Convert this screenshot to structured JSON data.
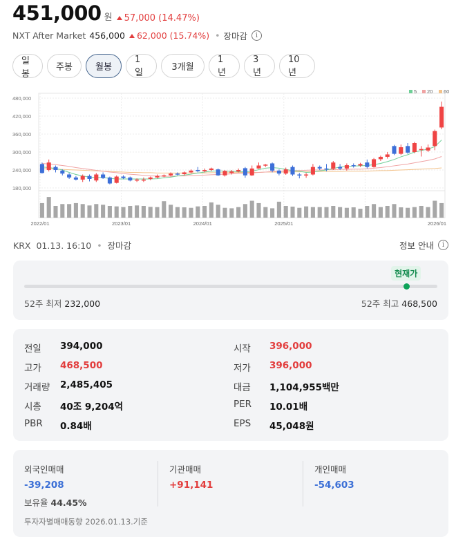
{
  "price": {
    "current": "451,000",
    "unit": "원",
    "change": "57,000 (14.47%)"
  },
  "nxt": {
    "label": "NXT After Market",
    "price": "456,000",
    "change": "62,000 (15.74%)",
    "status": "장마감"
  },
  "tabs": [
    "일봉",
    "주봉",
    "월봉",
    "1일",
    "3개월",
    "1년",
    "3년",
    "10년"
  ],
  "active_tab": "월봉",
  "chart_data": {
    "type": "candlestick",
    "yticks": [
      "480,000",
      "420,000",
      "360,000",
      "300,000",
      "240,000",
      "180,000"
    ],
    "ylim": [
      180000,
      480000
    ],
    "xticks": [
      "2022/01",
      "2023/01",
      "2024/01",
      "2025/01",
      "2026/01"
    ],
    "legend": [
      "5",
      "20",
      "60"
    ],
    "colors": {
      "up": "#ef4444",
      "down": "#3d6fd8",
      "ma5": "#6fcf97",
      "ma20": "#f0a3a3",
      "ma60": "#f3c28a",
      "volume": "#a7a7a7"
    },
    "candles": [
      [
        260000,
        230000,
        265000,
        228000
      ],
      [
        240000,
        265000,
        275000,
        235000
      ],
      [
        250000,
        240000,
        255000,
        232000
      ],
      [
        238000,
        228000,
        242000,
        222000
      ],
      [
        225000,
        215000,
        230000,
        210000
      ],
      [
        215000,
        208000,
        220000,
        205000
      ],
      [
        208000,
        220000,
        225000,
        200000
      ],
      [
        220000,
        210000,
        225000,
        202000
      ],
      [
        205000,
        225000,
        230000,
        200000
      ],
      [
        225000,
        213000,
        232000,
        210000
      ],
      [
        215000,
        195000,
        218000,
        192000
      ],
      [
        197000,
        218000,
        222000,
        195000
      ],
      [
        218000,
        213000,
        222000,
        209000
      ],
      [
        215000,
        205000,
        218000,
        202000
      ],
      [
        205000,
        208000,
        212000,
        200000
      ],
      [
        205000,
        208000,
        215000,
        200000
      ],
      [
        210000,
        215000,
        218000,
        206000
      ],
      [
        215000,
        220000,
        225000,
        212000
      ],
      [
        220000,
        222000,
        225000,
        216000
      ],
      [
        222000,
        228000,
        232000,
        218000
      ],
      [
        228000,
        226000,
        232000,
        222000
      ],
      [
        226000,
        232000,
        235000,
        222000
      ],
      [
        232000,
        238000,
        242000,
        228000
      ],
      [
        240000,
        236000,
        250000,
        232000
      ],
      [
        236000,
        240000,
        245000,
        232000
      ],
      [
        240000,
        245000,
        248000,
        236000
      ],
      [
        242000,
        222000,
        245000,
        220000
      ],
      [
        222000,
        237000,
        240000,
        218000
      ],
      [
        230000,
        235000,
        240000,
        225000
      ],
      [
        235000,
        240000,
        245000,
        232000
      ],
      [
        246000,
        222000,
        250000,
        214000
      ],
      [
        222000,
        245000,
        255000,
        220000
      ],
      [
        245000,
        255000,
        265000,
        244000
      ],
      [
        255000,
        258000,
        260000,
        250000
      ],
      [
        262000,
        238000,
        265000,
        232000
      ],
      [
        238000,
        228000,
        242000,
        222000
      ],
      [
        228000,
        242000,
        248000,
        224000
      ],
      [
        250000,
        225000,
        255000,
        220000
      ],
      [
        225000,
        223000,
        230000,
        212000
      ],
      [
        223000,
        225000,
        230000,
        214000
      ],
      [
        225000,
        250000,
        260000,
        222000
      ],
      [
        250000,
        245000,
        255000,
        240000
      ],
      [
        245000,
        244000,
        260000,
        236000
      ],
      [
        244000,
        265000,
        270000,
        240000
      ],
      [
        250000,
        245000,
        260000,
        240000
      ],
      [
        245000,
        256000,
        262000,
        238000
      ],
      [
        256000,
        253000,
        262000,
        248000
      ],
      [
        255000,
        260000,
        264000,
        250000
      ],
      [
        265000,
        250000,
        275000,
        245000
      ],
      [
        250000,
        276000,
        280000,
        248000
      ],
      [
        276000,
        284000,
        288000,
        270000
      ],
      [
        284000,
        292000,
        300000,
        278000
      ],
      [
        320000,
        294000,
        324000,
        290000
      ],
      [
        294000,
        316000,
        325000,
        290000
      ],
      [
        320000,
        298000,
        330000,
        294000
      ],
      [
        300000,
        330000,
        334000,
        296000
      ],
      [
        310000,
        310000,
        320000,
        285000
      ],
      [
        305000,
        315000,
        325000,
        300000
      ],
      [
        320000,
        370000,
        375000,
        306000
      ],
      [
        382000,
        451000,
        468500,
        376000
      ]
    ],
    "ma5": [
      250000,
      248000,
      245000,
      240000,
      232000,
      225000,
      220000,
      216000,
      215000,
      215000,
      212000,
      210000,
      210000,
      210000,
      210000,
      210000,
      210000,
      211000,
      214000,
      216000,
      220000,
      223000,
      226000,
      230000,
      233000,
      236000,
      237000,
      236000,
      236000,
      234000,
      234000,
      236000,
      241000,
      246000,
      248000,
      246000,
      242000,
      238000,
      236000,
      232000,
      233000,
      237000,
      240000,
      245000,
      250000,
      252000,
      253000,
      254000,
      255000,
      258000,
      262000,
      268000,
      275000,
      284000,
      291000,
      300000,
      305000,
      310000,
      318000,
      340000
    ],
    "ma20": [
      262000,
      260000,
      258000,
      255000,
      252000,
      248000,
      245000,
      242000,
      239000,
      236000,
      233000,
      231000,
      228000,
      226000,
      224000,
      222000,
      220000,
      220000,
      219000,
      219000,
      220000,
      220000,
      221000,
      222000,
      223000,
      224000,
      225000,
      226000,
      227000,
      228000,
      229000,
      230000,
      232000,
      233000,
      235000,
      236000,
      237000,
      238000,
      238000,
      239000,
      240000,
      240000,
      241000,
      241000,
      242000,
      242000,
      243000,
      243000,
      244000,
      246000,
      248000,
      251000,
      254000,
      257000,
      260000,
      264000,
      268000,
      272000,
      277000,
      285000
    ],
    "ma60": [
      245000,
      244000,
      243000,
      242000,
      241000,
      240000,
      239000,
      238000,
      237000,
      236000,
      235000,
      234000,
      233000,
      232000,
      232000,
      231000,
      231000,
      230000,
      230000,
      230000,
      230000,
      230000,
      230000,
      230000,
      230000,
      231000,
      231000,
      231000,
      231000,
      232000,
      232000,
      232000,
      232000,
      233000,
      233000,
      233000,
      233000,
      234000,
      234000,
      234000,
      234000,
      235000,
      235000,
      235000,
      235000,
      236000,
      236000,
      236000,
      236000,
      237000,
      238000,
      238000,
      239000,
      240000,
      241000,
      242000,
      243000,
      244000,
      245000,
      247000
    ],
    "volume": [
      0.62,
      0.88,
      0.5,
      0.58,
      0.58,
      0.62,
      0.58,
      0.52,
      0.58,
      0.55,
      0.5,
      0.48,
      0.45,
      0.5,
      0.52,
      0.5,
      0.46,
      0.45,
      0.7,
      0.55,
      0.45,
      0.44,
      0.42,
      0.48,
      0.5,
      0.65,
      0.55,
      0.42,
      0.4,
      0.45,
      0.58,
      0.72,
      0.62,
      0.45,
      0.4,
      0.68,
      0.5,
      0.47,
      0.42,
      0.48,
      0.45,
      0.45,
      0.45,
      0.5,
      0.45,
      0.42,
      0.44,
      0.38,
      0.5,
      0.58,
      0.45,
      0.5,
      0.58,
      0.44,
      0.42,
      0.45,
      0.5,
      0.45,
      0.72,
      0.62
    ]
  },
  "status": {
    "source": "KRX",
    "datetime": "01.13. 16:10",
    "state": "장마감",
    "info_link": "정보 안내"
  },
  "range52": {
    "badge": "현재가",
    "low_label": "52주 최저",
    "low": "232,000",
    "high_label": "52주 최고",
    "high": "468,500",
    "current_position": 0.925
  },
  "stats": {
    "prev_close": {
      "label": "전일",
      "value": "394,000"
    },
    "open": {
      "label": "시작",
      "value": "396,000"
    },
    "high": {
      "label": "고가",
      "value": "468,500"
    },
    "low": {
      "label": "저가",
      "value": "396,000"
    },
    "volume": {
      "label": "거래량",
      "value": "2,485,405"
    },
    "amount": {
      "label": "대금",
      "value": "1,104,955백만"
    },
    "market_cap": {
      "label": "시총",
      "value": "40조 9,204억"
    },
    "per": {
      "label": "PER",
      "value": "10.01배"
    },
    "pbr": {
      "label": "PBR",
      "value": "0.84배"
    },
    "eps": {
      "label": "EPS",
      "value": "45,048원"
    }
  },
  "trading": {
    "foreign": {
      "label": "외국인매매",
      "value": "-39,208"
    },
    "institution": {
      "label": "기관매매",
      "value": "+91,141"
    },
    "individual": {
      "label": "개인매매",
      "value": "-54,603"
    },
    "holding_label": "보유율",
    "holding_value": "44.45%",
    "footer": "투자자별매매동향 2026.01.13.기준"
  }
}
